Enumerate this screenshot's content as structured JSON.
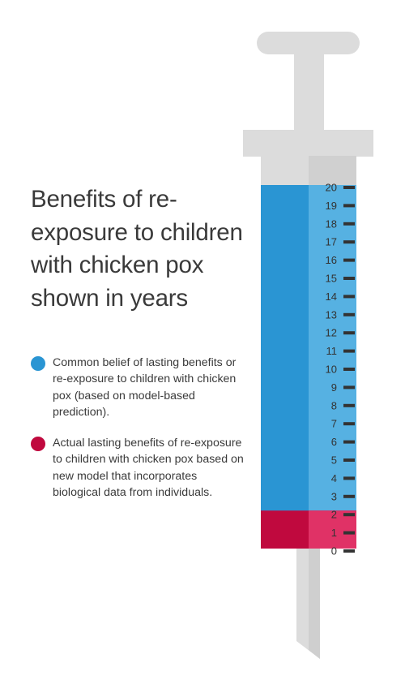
{
  "title": "Benefits of re-exposure to children with chicken pox shown in years",
  "colors": {
    "blue": "#2a95d3",
    "blue_light": "#56b1e2",
    "red": "#c0093e",
    "red_light": "#e03266",
    "syringe": "#dcdcdc",
    "syringe_shadow": "#c4c4c4",
    "tick": "#333333"
  },
  "legend": [
    {
      "color": "#2a95d3",
      "text": "Common belief of lasting benefits or re-exposure to children with chicken pox (based on model-based prediction)."
    },
    {
      "color": "#c0093e",
      "text": "Actual lasting benefits of re-exposure to children with chicken pox based on new model that incorporates biological data from individuals."
    }
  ],
  "chart_data": {
    "type": "bar",
    "orientation": "vertical",
    "ylim": [
      0,
      20
    ],
    "yticks": [
      0,
      1,
      2,
      3,
      4,
      5,
      6,
      7,
      8,
      9,
      10,
      11,
      12,
      13,
      14,
      15,
      16,
      17,
      18,
      19,
      20
    ],
    "series": [
      {
        "value": 20,
        "color": "#2a95d3"
      },
      {
        "value": 2,
        "color": "#c0093e"
      }
    ]
  }
}
